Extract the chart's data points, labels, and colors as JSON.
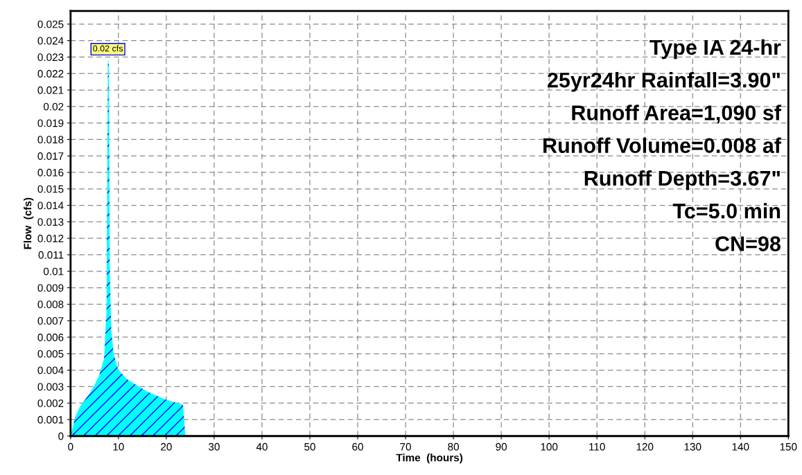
{
  "chart_data": {
    "type": "area",
    "xlabel": "Time  (hours)",
    "ylabel": "Flow  (cfs)",
    "x": [
      0,
      1,
      2,
      3,
      4,
      5,
      6,
      7,
      7.5,
      7.8,
      8.0,
      8.2,
      8.5,
      9,
      10,
      12,
      16,
      20,
      23.5,
      24,
      30,
      60,
      90,
      120,
      150
    ],
    "series": [
      {
        "color": "#00ffff",
        "values": [
          0,
          0.0012,
          0.0018,
          0.0022,
          0.0026,
          0.0031,
          0.0037,
          0.0047,
          0.0075,
          0.023,
          0.0225,
          0.01,
          0.0065,
          0.005,
          0.004,
          0.0034,
          0.0027,
          0.0022,
          0.0019,
          0,
          0,
          0,
          0,
          0,
          0
        ]
      }
    ],
    "annotations": [
      {
        "text": "0.02 cfs",
        "x": 7.8,
        "y": 0.023
      },
      "Type IA 24-hr",
      "25yr24hr Rainfall=3.90\"",
      "Runoff Area=1,090 sf",
      "Runoff Volume=0.008 af",
      "Runoff Depth=3.67\"",
      "Tc=5.0 min",
      "CN=98"
    ],
    "xlim": [
      0,
      150
    ],
    "xticks": [
      0,
      10,
      20,
      30,
      40,
      50,
      60,
      70,
      80,
      90,
      100,
      110,
      120,
      130,
      140,
      150
    ],
    "ylim": [
      0,
      0.0258
    ],
    "yticks": [
      0,
      0.001,
      0.002,
      0.003,
      0.004,
      0.005,
      0.006,
      0.007,
      0.008,
      0.009,
      0.01,
      0.011,
      0.012,
      0.013,
      0.014,
      0.015,
      0.016,
      0.017,
      0.018,
      0.019,
      0.02,
      0.021,
      0.022,
      0.023,
      0.024,
      0.025
    ],
    "grid": true,
    "line_style": "dashed"
  }
}
